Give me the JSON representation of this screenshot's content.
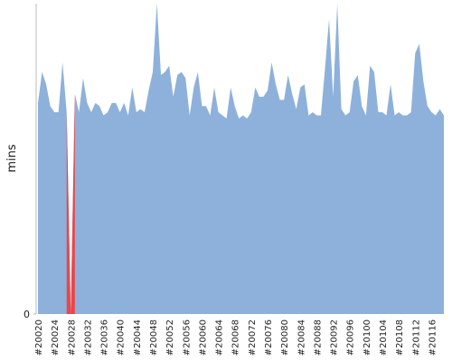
{
  "chart_data": {
    "type": "area",
    "ylabel": "mins",
    "color": "#8eb1db",
    "zero_color": "#e8474c",
    "ylim": [
      0,
      100
    ],
    "yticks": [
      0
    ],
    "categories": [
      "#20020",
      null,
      null,
      null,
      "#20024",
      null,
      null,
      null,
      "#20028",
      null,
      null,
      null,
      "#20032",
      null,
      null,
      null,
      "#20036",
      null,
      null,
      null,
      "#20040",
      null,
      null,
      null,
      "#20044",
      null,
      null,
      null,
      "#20048",
      null,
      null,
      null,
      "#20052",
      null,
      null,
      null,
      "#20056",
      null,
      null,
      null,
      "#20060",
      null,
      null,
      null,
      "#20064",
      null,
      null,
      null,
      "#20068",
      null,
      null,
      null,
      "#20072",
      null,
      null,
      null,
      "#20076",
      null,
      null,
      null,
      "#20080",
      null,
      null,
      null,
      "#20084",
      null,
      null,
      null,
      "#20088",
      null,
      null,
      null,
      "#20092",
      null,
      null,
      null,
      "#20096",
      null,
      null,
      null,
      "#20100",
      null,
      null,
      null,
      "#20104",
      null,
      null,
      null,
      "#20108",
      null,
      null,
      null,
      "#20112",
      null,
      null,
      null,
      "#20116",
      null,
      null,
      null
    ],
    "values": [
      68,
      78,
      74,
      67,
      65,
      65,
      81,
      65,
      0,
      71,
      65,
      76,
      68,
      65,
      68,
      67,
      64,
      65,
      68,
      68,
      65,
      68,
      64,
      73,
      65,
      66,
      65,
      72,
      78,
      100,
      77,
      78,
      80,
      70,
      77,
      78,
      76,
      64,
      73,
      78,
      67,
      67,
      64,
      73,
      65,
      64,
      63,
      73,
      67,
      63,
      64,
      63,
      65,
      73,
      70,
      70,
      72,
      81,
      74,
      69,
      69,
      77,
      71,
      66,
      73,
      74,
      64,
      65,
      64,
      64,
      79,
      95,
      70,
      100,
      66,
      64,
      65,
      75,
      77,
      67,
      64,
      80,
      78,
      65,
      65,
      64,
      74,
      64,
      65,
      64,
      64,
      65,
      84,
      87,
      75,
      67,
      65,
      64,
      66,
      64
    ]
  }
}
